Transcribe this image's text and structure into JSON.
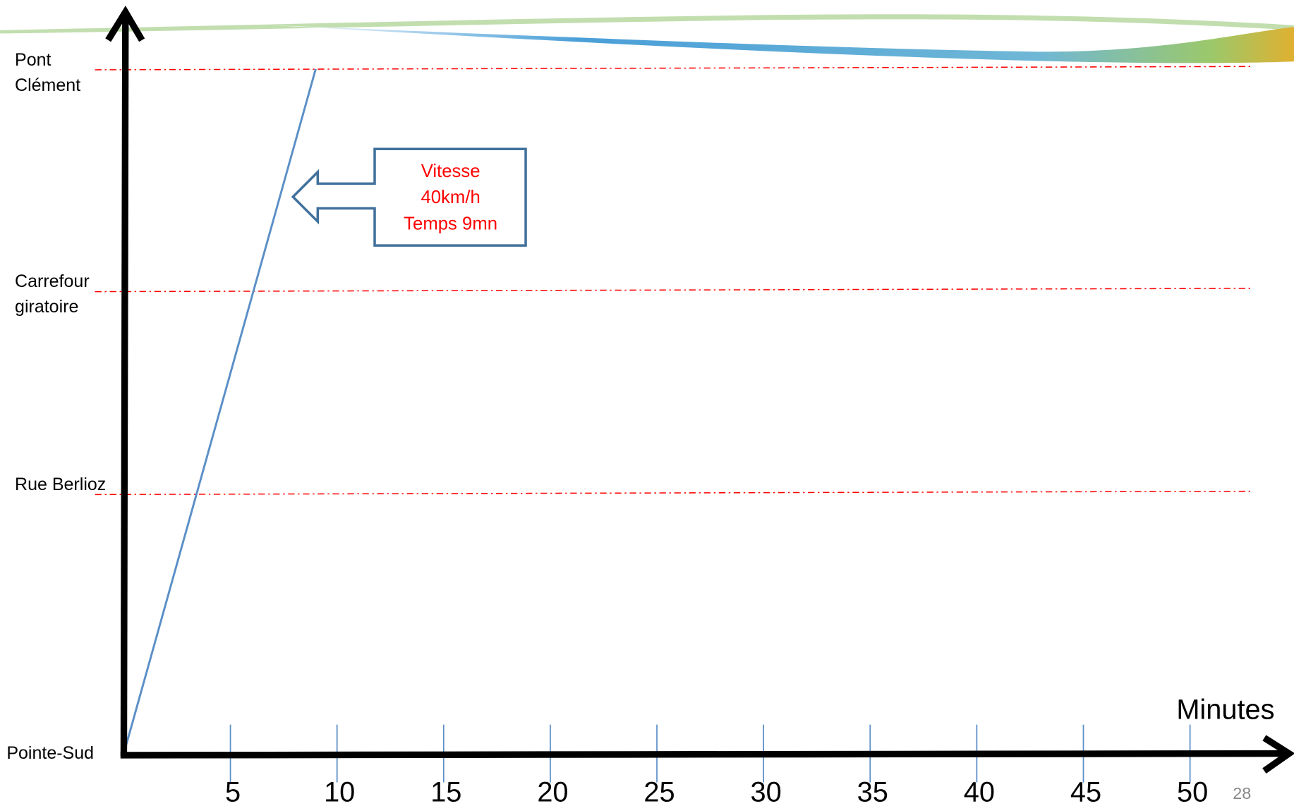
{
  "chart_data": {
    "type": "line",
    "x_label": "Minutes",
    "xlim": [
      0,
      55
    ],
    "xticks": [
      5,
      10,
      15,
      20,
      25,
      30,
      35,
      40,
      45,
      50
    ],
    "y_categories": [
      "Pointe-Sud",
      "Rue Berlioz",
      "Carrefour giratoire",
      "Pont Clément"
    ],
    "grid_color": "#ff0000",
    "series": [
      {
        "color": "#5b8fc7",
        "x": [
          0,
          9
        ],
        "values": [
          "Pointe-Sud",
          "Pont Clément"
        ]
      }
    ],
    "annotation": {
      "lines": [
        "Vitesse",
        "40km/h",
        "Temps 9mn"
      ],
      "color": "#ff0000"
    },
    "page_number": "28"
  }
}
